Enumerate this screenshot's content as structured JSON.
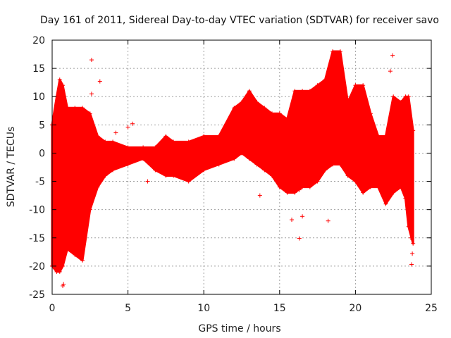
{
  "chart_data": {
    "type": "scatter",
    "title": "Day 161 of 2011, Sidereal Day-to-day VTEC variation (SDTVAR) for receiver savo",
    "xlabel": "GPS time / hours",
    "ylabel": "SDTVAR / TECUs",
    "xlim": [
      0,
      25
    ],
    "ylim": [
      -25,
      20
    ],
    "xticks": [
      0,
      5,
      10,
      15,
      20,
      25
    ],
    "yticks": [
      -25,
      -20,
      -15,
      -10,
      -5,
      0,
      5,
      10,
      15,
      20
    ],
    "grid": true,
    "marker": "+",
    "color": "#ff0000",
    "series": [
      {
        "name": "SDTVAR",
        "band_x": [
          0.0,
          0.3,
          0.5,
          0.7,
          1.0,
          1.5,
          2.0,
          2.5,
          3.0,
          3.5,
          4.0,
          5.0,
          6.0,
          6.8,
          7.5,
          8.0,
          9.0,
          10.0,
          11.0,
          12.0,
          12.5,
          13.0,
          13.5,
          14.0,
          14.5,
          15.0,
          15.5,
          16.0,
          16.5,
          17.0,
          17.5,
          18.0,
          18.5,
          19.0,
          19.5,
          20.0,
          20.5,
          21.0,
          21.5,
          22.0,
          22.5,
          23.0,
          23.3,
          23.5,
          23.8
        ],
        "band_upper": [
          5,
          10,
          13,
          12,
          8,
          8,
          8,
          7,
          3,
          2,
          2,
          1,
          1,
          1,
          3,
          2,
          2,
          3,
          3,
          8,
          9,
          11,
          9,
          8,
          7,
          7,
          6,
          11,
          11,
          11,
          12,
          13,
          18,
          18,
          9,
          12,
          12,
          7,
          3,
          3,
          10,
          9,
          10,
          10,
          4
        ],
        "band_lower": [
          -20,
          -21,
          -21,
          -20,
          -17,
          -18,
          -19,
          -10,
          -6,
          -4,
          -3,
          -2,
          -1,
          -3,
          -4,
          -4,
          -5,
          -3,
          -2,
          -1,
          0,
          -1,
          -2,
          -3,
          -4,
          -6,
          -7,
          -7,
          -6,
          -6,
          -5,
          -3,
          -2,
          -2,
          -4,
          -5,
          -7,
          -6,
          -6,
          -9,
          -7,
          -6,
          -8,
          -13,
          -16
        ],
        "outliers": [
          [
            0.7,
            -23.5
          ],
          [
            0.75,
            -23.2
          ],
          [
            2.6,
            16.5
          ],
          [
            3.15,
            12.7
          ],
          [
            2.6,
            10.5
          ],
          [
            5.3,
            5.2
          ],
          [
            5.0,
            4.6
          ],
          [
            4.2,
            3.6
          ],
          [
            6.3,
            -5.0
          ],
          [
            13.7,
            -7.5
          ],
          [
            15.8,
            -11.8
          ],
          [
            16.3,
            -15.1
          ],
          [
            16.5,
            -11.2
          ],
          [
            16.3,
            -6.5
          ],
          [
            18.2,
            -12.0
          ],
          [
            22.45,
            17.3
          ],
          [
            22.3,
            14.5
          ],
          [
            23.7,
            -19.7
          ],
          [
            23.75,
            -17.8
          ],
          [
            23.65,
            -15.0
          ]
        ]
      }
    ]
  }
}
